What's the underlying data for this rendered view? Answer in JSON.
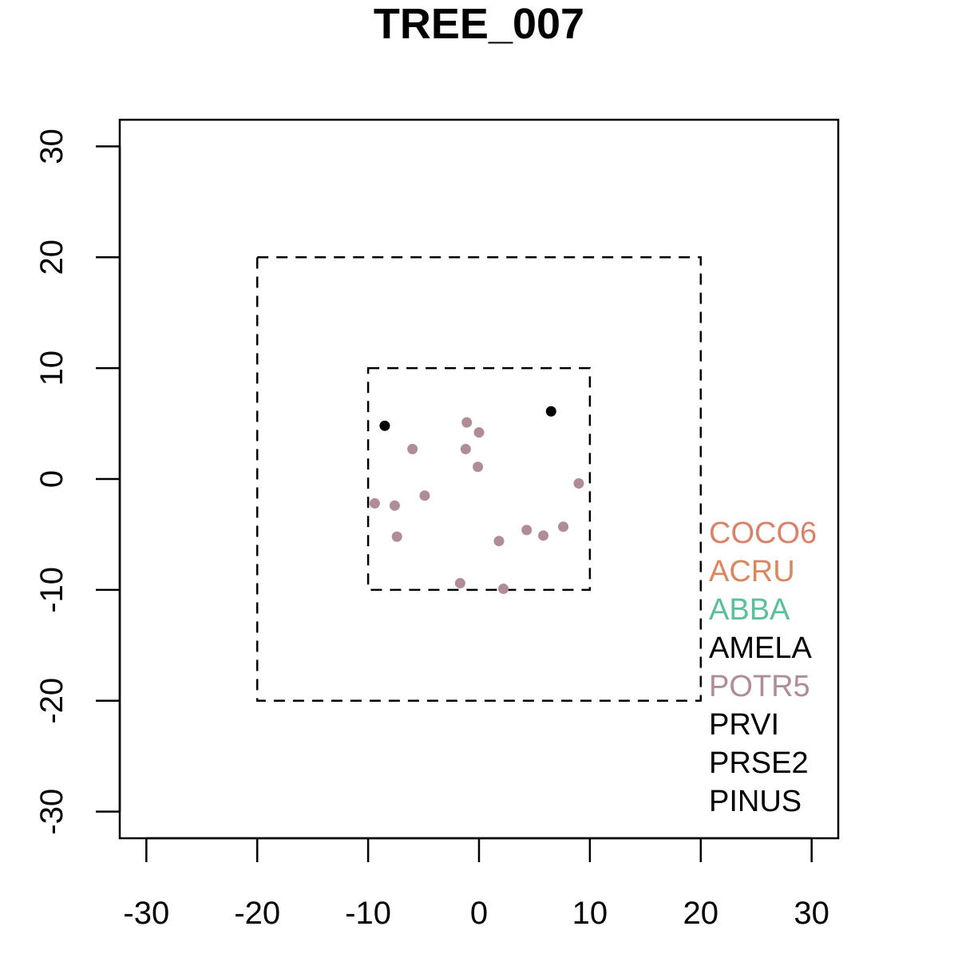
{
  "chart_data": {
    "type": "scatter",
    "title": "TREE_007",
    "xlabel": "",
    "ylabel": "",
    "xlim": [
      -32.4,
      32.4
    ],
    "ylim": [
      -32.4,
      32.4
    ],
    "x_ticks": [
      -30,
      -20,
      -10,
      0,
      10,
      20,
      30
    ],
    "y_ticks": [
      -30,
      -20,
      -10,
      0,
      10,
      20,
      30
    ],
    "x_tick_labels": [
      "-30",
      "-20",
      "-10",
      "0",
      "10",
      "20",
      "30"
    ],
    "y_tick_labels": [
      "-30",
      "-20",
      "-10",
      "0",
      "10",
      "20",
      "30"
    ],
    "grid": false,
    "boxes": [
      {
        "xmin": -20,
        "xmax": 20,
        "ymin": -20,
        "ymax": 20,
        "style": "dashed"
      },
      {
        "xmin": -10,
        "xmax": 10,
        "ymin": -10,
        "ymax": 10,
        "style": "dashed"
      }
    ],
    "series": [
      {
        "name": "POTR5",
        "color": "#b08c96",
        "points": [
          [
            -1.1,
            5.1
          ],
          [
            0.0,
            4.2
          ],
          [
            -6.0,
            2.7
          ],
          [
            -1.2,
            2.7
          ],
          [
            -0.1,
            1.1
          ],
          [
            9.0,
            -0.4
          ],
          [
            -4.9,
            -1.5
          ],
          [
            -9.4,
            -2.2
          ],
          [
            -7.6,
            -2.4
          ],
          [
            -7.4,
            -5.2
          ],
          [
            4.3,
            -4.6
          ],
          [
            5.8,
            -5.1
          ],
          [
            7.6,
            -4.3
          ],
          [
            1.8,
            -5.6
          ],
          [
            -1.7,
            -9.4
          ],
          [
            2.2,
            -9.9
          ]
        ]
      },
      {
        "name": "AMELA",
        "color": "#000000",
        "points": [
          [
            -8.5,
            4.8
          ],
          [
            6.5,
            6.1
          ]
        ]
      }
    ],
    "legend": {
      "placement": "bottom-right",
      "entries": [
        {
          "label": "COCO6",
          "color": "#d9826a"
        },
        {
          "label": "ACRU",
          "color": "#d8875f"
        },
        {
          "label": "ABBA",
          "color": "#5cbf99"
        },
        {
          "label": "AMELA",
          "color": "#000000"
        },
        {
          "label": "POTR5",
          "color": "#b08c96"
        },
        {
          "label": "PRVI",
          "color": "#000000"
        },
        {
          "label": "PRSE2",
          "color": "#000000"
        },
        {
          "label": "PINUS",
          "color": "#000000"
        }
      ]
    }
  }
}
